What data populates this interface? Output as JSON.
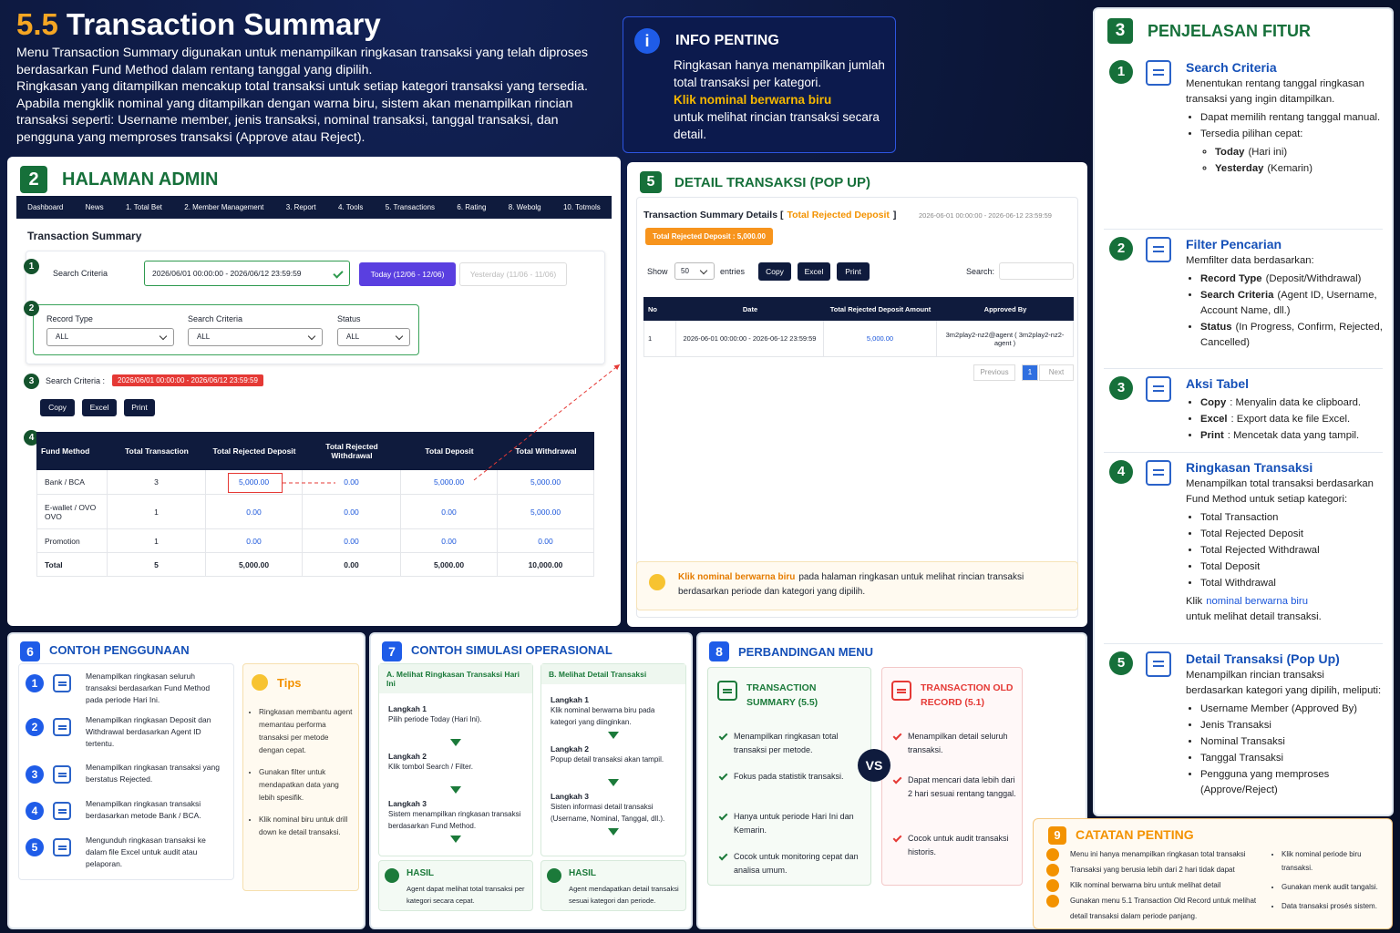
{
  "header": {
    "number": "5.5",
    "title": "Transaction Summary",
    "paragraphs": [
      "Menu Transaction Summary digunakan untuk menampilkan ringkasan transaksi yang telah diproses berdasarkan Fund Method dalam rentang tanggal yang dipilih.",
      "Ringkasan yang ditampilkan mencakup total transaksi untuk setiap kategori transaksi yang tersedia. Apabila mengklik nominal yang ditampilkan dengan warna biru, sistem akan menampilkan rincian transaksi seperti: Username member, jenis transaksi, nominal transaksi, tanggal transaksi, dan pengguna yang memproses transaksi (Approve atau Reject)."
    ]
  },
  "info": {
    "icon": "i",
    "title": "INFO PENTING",
    "line1": "Ringkasan hanya menampilkan jumlah total transaksi per kategori.",
    "highlight": "Klik nominal berwarna biru",
    "line2": "untuk melihat rincian transaksi secara detail."
  },
  "admin": {
    "number": "2",
    "title": "HALAMAN ADMIN",
    "nav": [
      "Dashboard",
      "News",
      "1. Total Bet",
      "2. Member Management",
      "3. Report",
      "4. Tools",
      "5. Transactions",
      "6. Rating",
      "8. Webolg",
      "10. Totmols"
    ],
    "page_title": "Transaction Summary",
    "markers": [
      "1",
      "2",
      "3",
      "4"
    ],
    "search_label": "Search Criteria",
    "date_range": "2026/06/01 00:00:00 - 2026/06/12 23:59:59",
    "today": "Today (12/06 - 12/06)",
    "yesterday": "Yesterday (11/06 - 11/06)",
    "filters": [
      {
        "label": "Record Type",
        "value": "ALL"
      },
      {
        "label": "Search Criteria",
        "value": "ALL"
      },
      {
        "label": "Status",
        "value": "ALL"
      }
    ],
    "criteria_label": "Search Criteria :",
    "criteria_value": "2026/06/01 00:00:00 - 2026/06/12 23:59:59",
    "buttons": [
      "Copy",
      "Excel",
      "Print"
    ],
    "table": {
      "columns": [
        "Fund Method",
        "Total Transaction",
        "Total Rejected Deposit",
        "Total Rejected Withdrawal",
        "Total Deposit",
        "Total Withdrawal"
      ],
      "rows": [
        [
          "Bank / BCA",
          "3",
          "5,000.00",
          "0.00",
          "5,000.00",
          "5,000.00"
        ],
        [
          "E-wallet / OVO OVO",
          "1",
          "0.00",
          "0.00",
          "0.00",
          "5,000.00"
        ],
        [
          "Promotion",
          "1",
          "0.00",
          "0.00",
          "0.00",
          "0.00"
        ],
        [
          "Total",
          "5",
          "5,000.00",
          "0.00",
          "5,000.00",
          "10,000.00"
        ]
      ]
    }
  },
  "popup": {
    "number": "5",
    "title": "DETAIL TRANSAKSI (POP UP)",
    "heading": "Transaction Summary Details [",
    "heading_highlight": "Total Rejected Deposit",
    "heading_end": "]",
    "range": "2026-06-01 00:00:00 - 2026-06-12 23:59:59",
    "badge": "Total Rejected Deposit : 5,000.00",
    "show": "Show",
    "entries_value": "50",
    "entries": "entries",
    "buttons": [
      "Copy",
      "Excel",
      "Print"
    ],
    "search": "Search:",
    "columns": [
      "No",
      "Date",
      "Total Rejected Deposit Amount",
      "Approved By"
    ],
    "rows": [
      [
        "1",
        "2026-06-01 00:00:00 - 2026-06-12 23:59:59",
        "5,000.00",
        "3m2play2-nz2@agent ( 3m2play2-nz2-agent )"
      ]
    ],
    "pager": [
      "Previous",
      "1",
      "Next"
    ],
    "tip_highlight": "Klik nominal berwarna biru",
    "tip": "pada halaman ringkasan untuk melihat rincian transaksi berdasarkan periode dan kategori yang dipilih."
  },
  "features": {
    "number": "3",
    "title": "PENJELASAN FITUR",
    "items": [
      {
        "number": "1",
        "title": "Search Criteria",
        "text": "Menentukan rentang tanggal ringkasan transaksi yang ingin ditampilkan.",
        "bullets": [
          {
            "text": "Dapat memilih rentang tanggal manual."
          },
          {
            "text": "Tersedia pilihan cepat:"
          }
        ],
        "sub_bullets": [
          {
            "bold": "Today",
            "text": "(Hari ini)"
          },
          {
            "bold": "Yesterday",
            "text": "(Kemarin)"
          }
        ]
      },
      {
        "number": "2",
        "title": "Filter Pencarian",
        "text": "Memfilter data berdasarkan:",
        "bullets": [
          {
            "bold": "Record Type",
            "text": "(Deposit/Withdrawal)"
          },
          {
            "bold": "Search Criteria",
            "text": "(Agent ID, Username, Account Name, dll.)"
          },
          {
            "bold": "Status",
            "text": "(In Progress, Confirm, Rejected, Cancelled)"
          }
        ]
      },
      {
        "number": "3",
        "title": "Aksi Tabel",
        "bullets": [
          {
            "bold": "Copy",
            "text": ": Menyalin data ke clipboard."
          },
          {
            "bold": "Excel",
            "text": ": Export data ke file Excel."
          },
          {
            "bold": "Print",
            "text": ": Mencetak data yang tampil."
          }
        ]
      },
      {
        "number": "4",
        "title": "Ringkasan Transaksi",
        "text": "Menampilkan total transaksi berdasarkan Fund Method untuk setiap kategori:",
        "bullets": [
          {
            "text": "Total Transaction"
          },
          {
            "text": "Total Rejected Deposit"
          },
          {
            "text": "Total Rejected Withdrawal"
          },
          {
            "text": "Total Deposit"
          },
          {
            "text": "Total Withdrawal"
          }
        ],
        "footer": {
          "pre": "Klik",
          "highlight": "nominal berwarna biru",
          "text": "untuk melihat detail transaksi."
        }
      },
      {
        "number": "5",
        "title": "Detail Transaksi (Pop Up)",
        "text": "Menampilkan rincian transaksi berdasarkan kategori yang dipilih, meliputi:",
        "bullets": [
          {
            "text": "Username Member (Approved By)"
          },
          {
            "text": "Jenis Transaksi"
          },
          {
            "text": "Nominal Transaksi"
          },
          {
            "text": "Tanggal Transaksi"
          },
          {
            "text": "Pengguna yang memproses (Approve/Reject)"
          }
        ]
      }
    ]
  },
  "usage": {
    "number": "6",
    "title": "CONTOH PENGGUNAAN",
    "items": [
      {
        "number": "1",
        "text": "Menampilkan ringkasan seluruh transaksi berdasarkan Fund Method pada periode Hari Ini."
      },
      {
        "number": "2",
        "text": "Menampilkan ringkasan Deposit dan Withdrawal berdasarkan Agent ID tertentu."
      },
      {
        "number": "3",
        "text": "Menampilkan ringkasan transaksi yang berstatus Rejected."
      },
      {
        "number": "4",
        "text": "Menampilkan ringkasan transaksi berdasarkan metode Bank / BCA."
      },
      {
        "number": "5",
        "text": "Mengunduh ringkasan transaksi ke dalam file Excel untuk audit atau pelaporan."
      }
    ],
    "tips_title": "Tips",
    "tips": [
      "Ringkasan membantu agent memantau performa transaksi per metode dengan cepat.",
      "Gunakan filter untuk mendapatkan data yang lebih spesifik.",
      "Klik nominal biru untuk drill down ke detail transaksi."
    ]
  },
  "simulation": {
    "number": "7",
    "title": "CONTOH SIMULASI OPERASIONAL",
    "flows": [
      {
        "title": "A. Melihat Ringkasan Transaksi Hari Ini",
        "steps": [
          {
            "label": "Langkah 1",
            "text": "Pilih periode Today (Hari Ini)."
          },
          {
            "label": "Langkah 2",
            "text": "Klik tombol Search / Filter."
          },
          {
            "label": "Langkah 3",
            "text": "Sistem menampilkan ringkasan transaksi berdasarkan Fund Method."
          }
        ],
        "result_title": "HASIL",
        "result": "Agent dapat melihat total transaksi per kategori secara cepat."
      },
      {
        "title": "B. Melihat Detail Transaksi",
        "steps": [
          {
            "label": "Langkah 1",
            "text": "Klik nominal berwarna biru pada kategori yang diinginkan."
          },
          {
            "label": "Langkah 2",
            "text": "Popup detail transaksi akan tampil."
          },
          {
            "label": "Langkah 3",
            "text": "Sisten informasi detail transaksi (Username, Nominal, Tanggal, dll.)."
          }
        ],
        "result_title": "HASIL",
        "result": "Agent mendapatkan detail transaksi sesuai kategori dan periode."
      }
    ]
  },
  "comparison": {
    "number": "8",
    "title": "PERBANDINGAN MENU",
    "vs": "VS",
    "menus": [
      {
        "title": "TRANSACTION SUMMARY (5.5)",
        "points": [
          "Menampilkan ringkasan total transaksi per metode.",
          "Fokus pada statistik transaksi.",
          "Hanya untuk periode Hari Ini dan Kemarin.",
          "Cocok untuk monitoring cepat dan analisa umum."
        ]
      },
      {
        "title": "TRANSACTION OLD RECORD (5.1)",
        "points": [
          "Menampilkan detail seluruh transaksi.",
          "Dapat mencari data lebih dari 2 hari sesuai rentang tanggal.",
          "Cocok untuk audit transaksi historis."
        ]
      }
    ]
  },
  "notes": {
    "number": "9",
    "title": "CATATAN PENTING",
    "left": [
      "Menu ini hanya menampilkan ringkasan total transaksi",
      "Transaksi yang berusia lebih dari 2 hari tidak dapat",
      "Klik nominal berwarna biru untuk melihat detail",
      "Gunakan menu 5.1 Transaction Old Record untuk melihat detail transaksi dalam periode panjang."
    ],
    "right": [
      "Klik nominal periode biru transaksi.",
      "Gunakan menk audit tangalsi.",
      "Data transaksi prosés sistem."
    ]
  }
}
